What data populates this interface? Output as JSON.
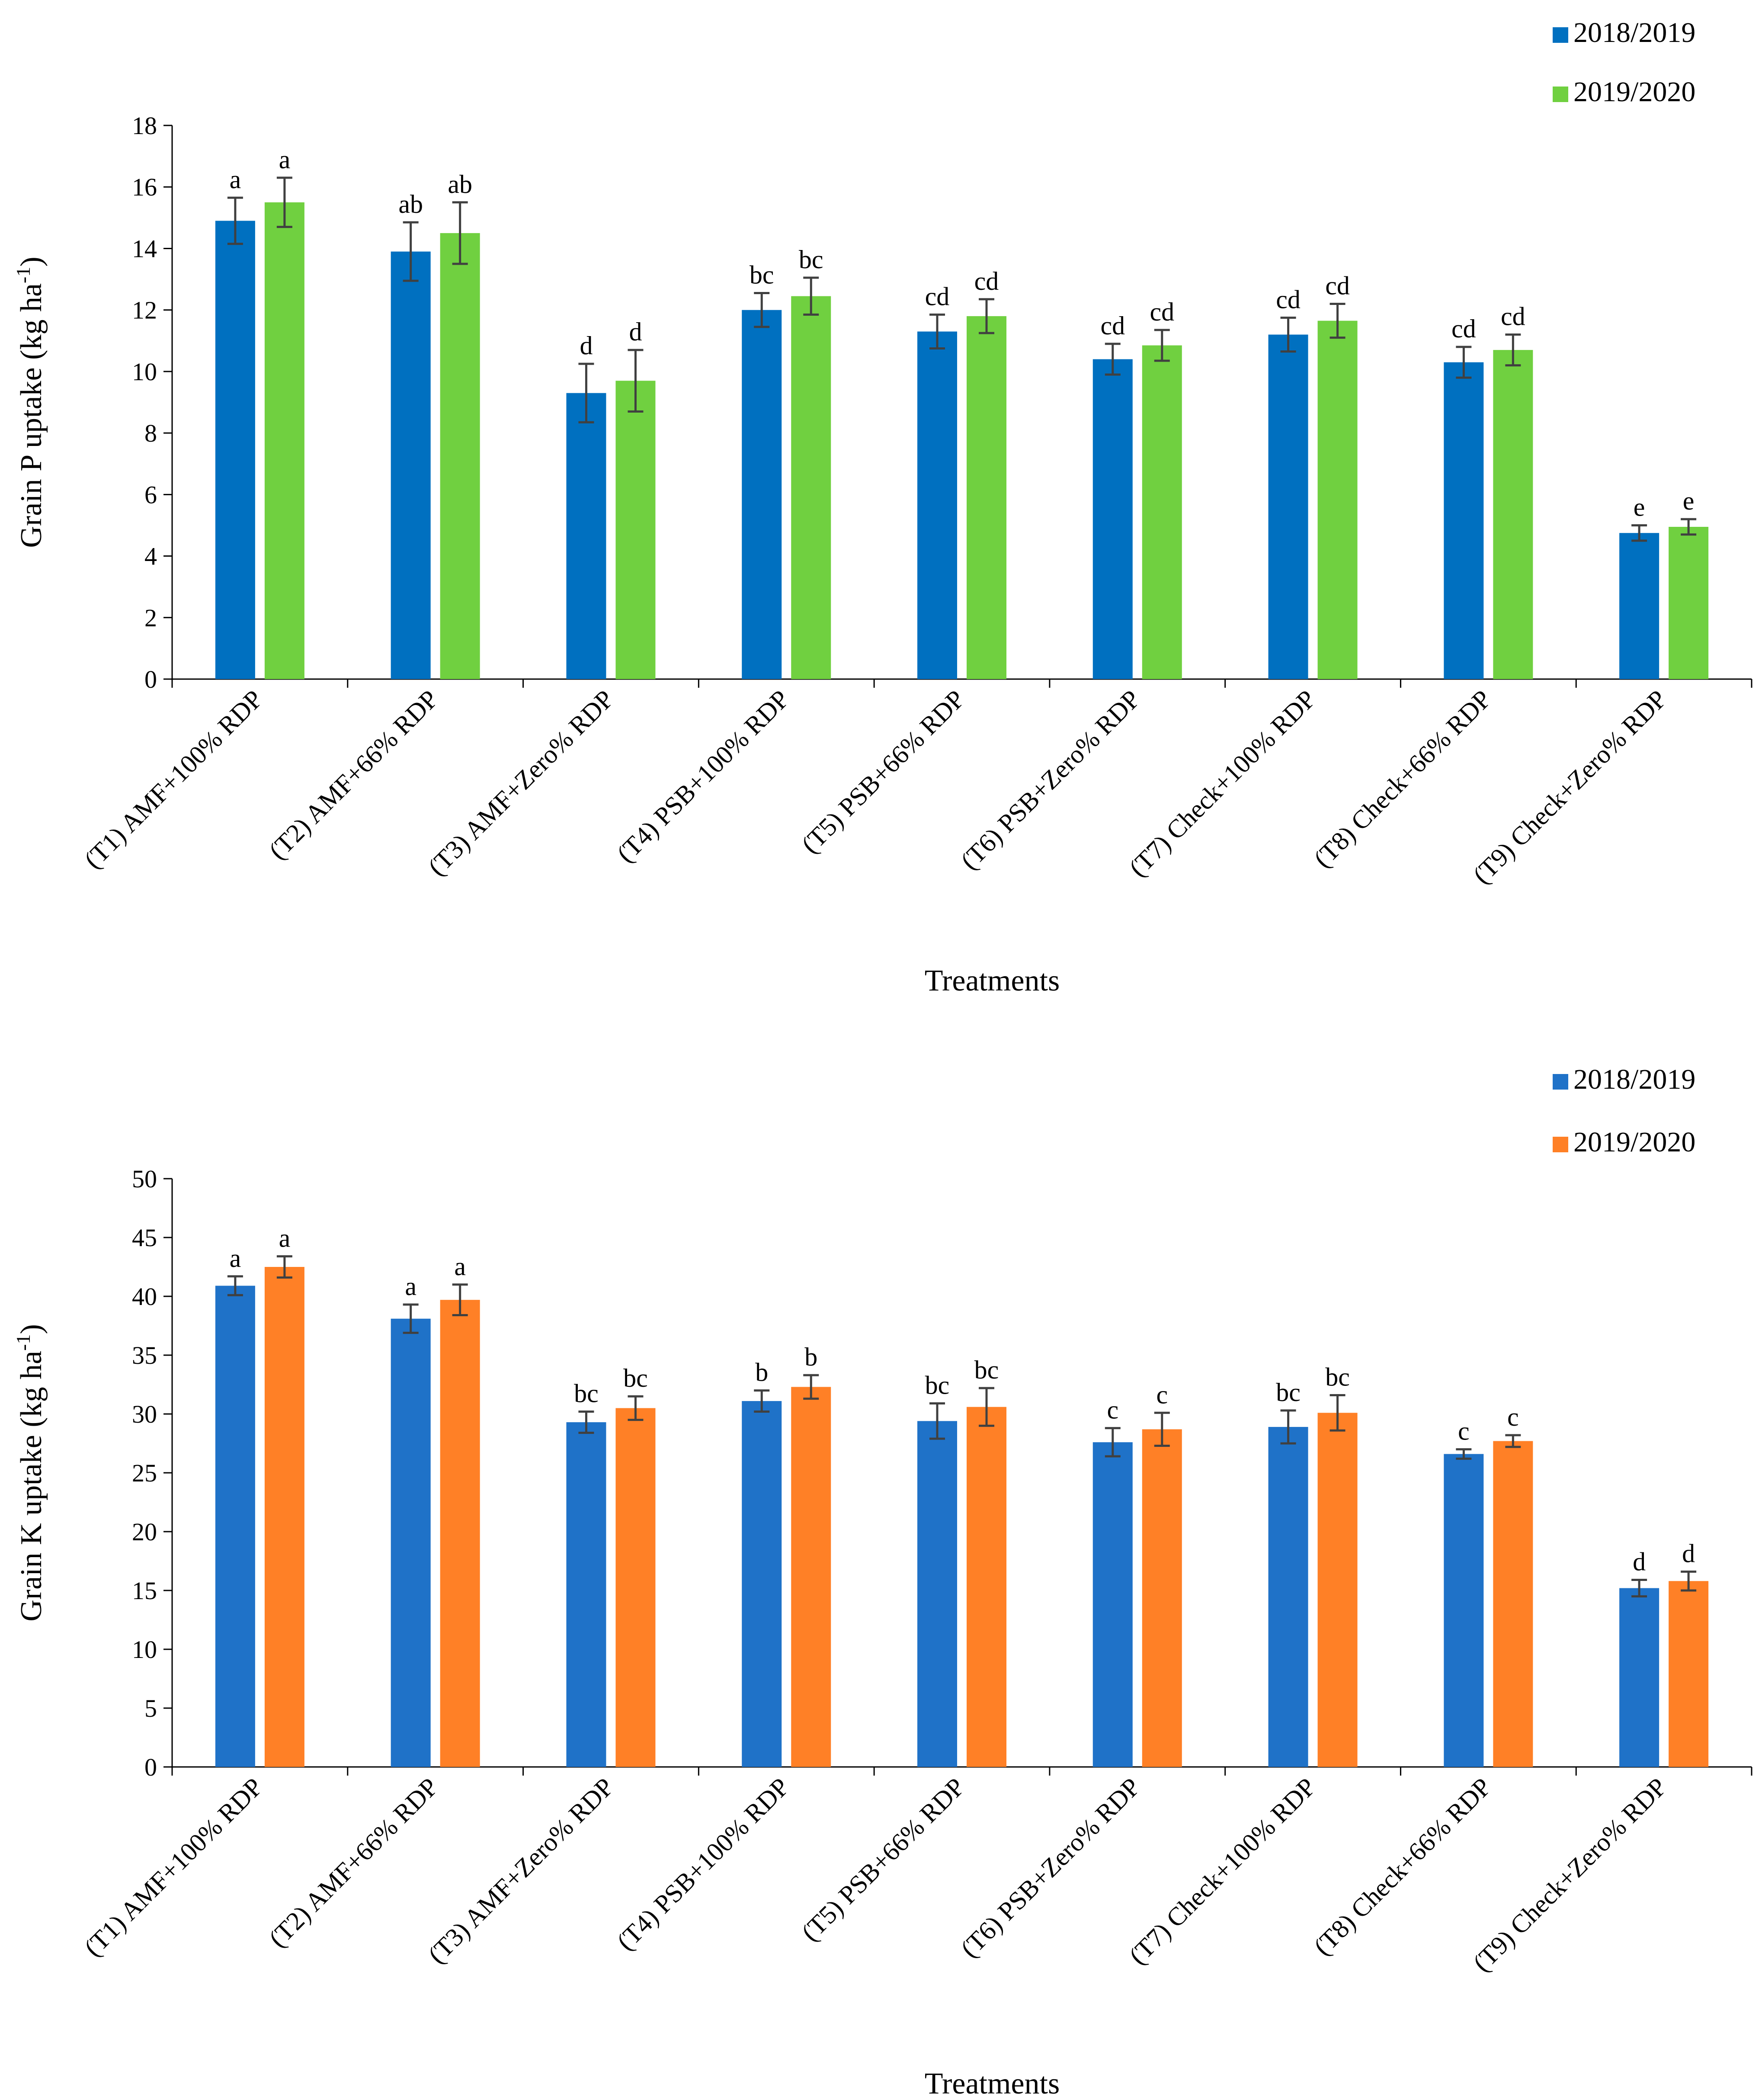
{
  "chart_data": [
    {
      "type": "bar",
      "categories": [
        "(T1) AMF+100% RDP",
        "(T2) AMF+66% RDP",
        "(T3) AMF+Zero% RDP",
        "(T4) PSB+100% RDP",
        "(T5) PSB+66% RDP",
        "(T6) PSB+Zero% RDP",
        "(T7) Check+100% RDP",
        "(T8) Check+66% RDP",
        "(T9) Check+Zero% RDP"
      ],
      "series": [
        {
          "name": "2018/2019",
          "color": "#0070C0",
          "values": [
            14.9,
            13.9,
            9.3,
            12.0,
            11.3,
            10.4,
            11.2,
            10.3,
            4.75
          ],
          "errors": [
            0.75,
            0.95,
            0.95,
            0.55,
            0.55,
            0.5,
            0.55,
            0.5,
            0.25
          ],
          "labels": [
            "a",
            "ab",
            "d",
            "bc",
            "cd",
            "cd",
            "cd",
            "cd",
            "e"
          ]
        },
        {
          "name": "2019/2020",
          "color": "#70D040",
          "values": [
            15.5,
            14.5,
            9.7,
            12.45,
            11.8,
            10.85,
            11.65,
            10.7,
            4.95
          ],
          "errors": [
            0.8,
            1.0,
            1.0,
            0.6,
            0.55,
            0.5,
            0.55,
            0.5,
            0.25
          ],
          "labels": [
            "a",
            "ab",
            "d",
            "bc",
            "cd",
            "cd",
            "cd",
            "cd",
            "e"
          ]
        }
      ],
      "ylabel": "Grain P uptake (kg ha",
      "ylabel_sup": "-1",
      "ylabel_end": ")",
      "xlabel": "Treatments",
      "ylim": [
        0,
        18
      ],
      "yticks": [
        0,
        2,
        4,
        6,
        8,
        10,
        12,
        14,
        16,
        18
      ],
      "grid": false,
      "legend": "top-right"
    },
    {
      "type": "bar",
      "categories": [
        "(T1) AMF+100% RDP",
        "(T2) AMF+66% RDP",
        "(T3) AMF+Zero% RDP",
        "(T4) PSB+100% RDP",
        "(T5) PSB+66% RDP",
        "(T6) PSB+Zero% RDP",
        "(T7) Check+100% RDP",
        "(T8) Check+66% RDP",
        "(T9) Check+Zero% RDP"
      ],
      "series": [
        {
          "name": "2018/2019",
          "color": "#1F72C8",
          "values": [
            40.9,
            38.1,
            29.3,
            31.1,
            29.4,
            27.6,
            28.9,
            26.6,
            15.2
          ],
          "errors": [
            0.8,
            1.2,
            0.9,
            0.9,
            1.5,
            1.2,
            1.4,
            0.4,
            0.7
          ],
          "labels": [
            "a",
            "a",
            "bc",
            "b",
            "bc",
            "c",
            "bc",
            "c",
            "d"
          ]
        },
        {
          "name": "2019/2020",
          "color": "#FF8026",
          "values": [
            42.5,
            39.7,
            30.5,
            32.3,
            30.6,
            28.7,
            30.1,
            27.7,
            15.8
          ],
          "errors": [
            0.9,
            1.3,
            1.0,
            1.0,
            1.6,
            1.4,
            1.5,
            0.5,
            0.8
          ],
          "labels": [
            "a",
            "a",
            "bc",
            "b",
            "bc",
            "c",
            "bc",
            "c",
            "d"
          ]
        }
      ],
      "ylabel": "Grain K uptake (kg ha",
      "ylabel_sup": "-1",
      "ylabel_end": ")",
      "xlabel": "Treatments",
      "ylim": [
        0,
        50
      ],
      "yticks": [
        0,
        5,
        10,
        15,
        20,
        25,
        30,
        35,
        40,
        45,
        50
      ],
      "grid": false,
      "legend": "top-right"
    }
  ]
}
